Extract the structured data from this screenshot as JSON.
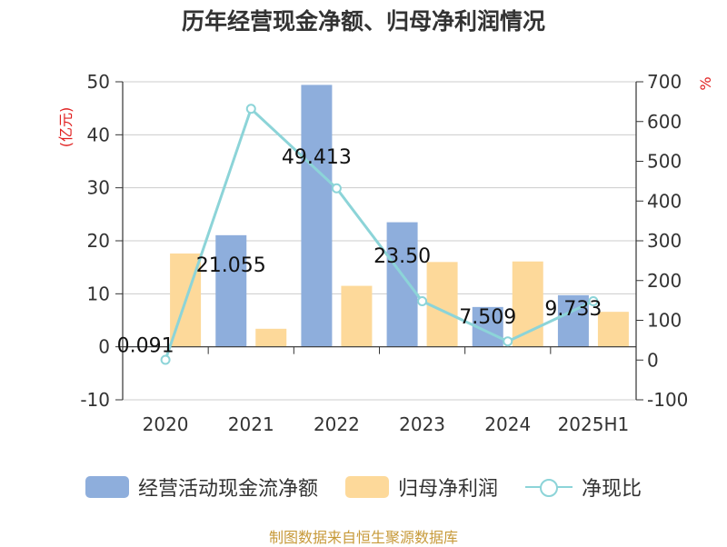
{
  "title": "历年经营现金净额、归母净利润情况",
  "source": "制图数据来自恒生聚源数据库",
  "chart_data": {
    "type": "bar",
    "categories": [
      "2020",
      "2021",
      "2022",
      "2023",
      "2024",
      "2025H1"
    ],
    "left_axis": {
      "unit": "(亿元)",
      "ylim": [
        -10,
        50
      ],
      "ticks": [
        -10,
        0,
        10,
        20,
        30,
        40,
        50
      ]
    },
    "right_axis": {
      "unit": "%",
      "ylim": [
        -100,
        700
      ],
      "ticks": [
        -100,
        0,
        100,
        200,
        300,
        400,
        500,
        600,
        700
      ]
    },
    "grid": true,
    "legend_position": "bottom",
    "series": [
      {
        "name": "经营活动现金流净额",
        "type": "bar",
        "axis": "left",
        "color": "#8eaedc",
        "values": [
          0.091,
          21.055,
          49.413,
          23.5,
          7.509,
          9.733
        ],
        "labels": [
          "0.091",
          "21.055",
          "49.413",
          "23.50",
          "7.509",
          "9.733"
        ]
      },
      {
        "name": "归母净利润",
        "type": "bar",
        "axis": "left",
        "color": "#fdd99a",
        "values": [
          17.6,
          3.4,
          11.5,
          16.0,
          16.1,
          6.6
        ]
      },
      {
        "name": "净现比",
        "type": "line",
        "axis": "right",
        "color": "#8cd4d8",
        "values": [
          0.5,
          632,
          432,
          148,
          47,
          148
        ]
      }
    ]
  }
}
